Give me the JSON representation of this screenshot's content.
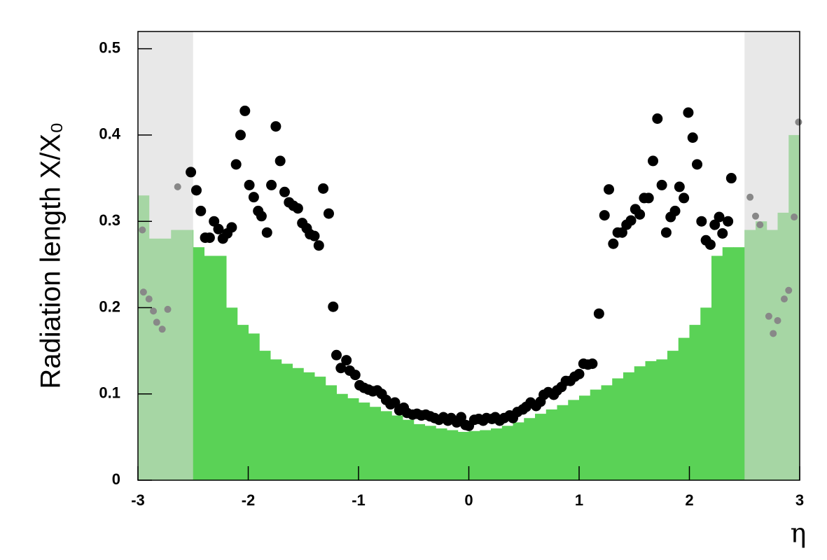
{
  "chart_data": {
    "type": "histogram",
    "xlabel": "η",
    "ylabel": "Radiation length X/X₀",
    "xlim": [
      -3,
      3
    ],
    "ylim": [
      0,
      0.52
    ],
    "xticks": [
      -3,
      -2,
      -1,
      0,
      1,
      2,
      3
    ],
    "yticks": [
      0,
      0.1,
      0.2,
      0.3,
      0.4,
      0.5
    ],
    "color": "#5ad256",
    "bins": [
      -3,
      -2.9,
      -2.8,
      -2.7,
      -2.6,
      -2.5,
      -2.4,
      -2.3,
      -2.2,
      -2.1,
      -2,
      -1.9,
      -1.8,
      -1.7,
      -1.6,
      -1.5,
      -1.4,
      -1.3,
      -1.2,
      -1.1,
      -1,
      -0.9,
      -0.8,
      -0.7,
      -0.6,
      -0.5,
      -0.4,
      -0.3,
      -0.2,
      -0.1,
      0,
      0.1,
      0.2,
      0.3,
      0.4,
      0.5,
      0.6,
      0.7,
      0.8,
      0.9,
      1,
      1.1,
      1.2,
      1.3,
      1.4,
      1.5,
      1.6,
      1.7,
      1.8,
      1.9,
      2,
      2.1,
      2.2,
      2.3,
      2.4,
      2.5,
      2.6,
      2.7,
      2.8,
      2.9,
      3
    ],
    "counts": [
      0.33,
      0.28,
      0.28,
      0.29,
      0.29,
      0.27,
      0.26,
      0.26,
      0.2,
      0.18,
      0.17,
      0.15,
      0.14,
      0.135,
      0.13,
      0.125,
      0.12,
      0.11,
      0.1,
      0.095,
      0.09,
      0.085,
      0.08,
      0.075,
      0.07,
      0.065,
      0.063,
      0.06,
      0.058,
      0.056,
      0.057,
      0.058,
      0.06,
      0.063,
      0.067,
      0.072,
      0.077,
      0.082,
      0.087,
      0.093,
      0.098,
      0.105,
      0.11,
      0.118,
      0.125,
      0.132,
      0.138,
      0.14,
      0.15,
      0.165,
      0.18,
      0.2,
      0.26,
      0.27,
      0.27,
      0.29,
      0.3,
      0.29,
      0.31,
      0.4
    ],
    "shaded_ranges": [
      [
        -3,
        -2.5
      ],
      [
        2.5,
        3
      ]
    ],
    "points": {
      "color": "#000000",
      "x": [
        -2.52,
        -2.47,
        -2.43,
        -2.39,
        -2.35,
        -2.31,
        -2.27,
        -2.23,
        -2.19,
        -2.15,
        -2.11,
        -2.07,
        -2.03,
        -1.99,
        -1.95,
        -1.91,
        -1.88,
        -1.83,
        -1.79,
        -1.75,
        -1.71,
        -1.67,
        -1.63,
        -1.59,
        -1.55,
        -1.51,
        -1.47,
        -1.44,
        -1.4,
        -1.36,
        -1.32,
        -1.27,
        -1.23,
        -1.2,
        -1.16,
        -1.11,
        -1.08,
        -1.03,
        -0.99,
        -0.95,
        -0.91,
        -0.87,
        -0.83,
        -0.79,
        -0.75,
        -0.71,
        -0.67,
        -0.63,
        -0.59,
        -0.56,
        -0.51,
        -0.47,
        -0.43,
        -0.39,
        -0.35,
        -0.31,
        -0.27,
        -0.23,
        -0.19,
        -0.16,
        -0.11,
        -0.07,
        -0.03,
        0,
        0.05,
        0.09,
        0.13,
        0.16,
        0.21,
        0.24,
        0.28,
        0.32,
        0.37,
        0.4,
        0.44,
        0.49,
        0.52,
        0.56,
        0.61,
        0.65,
        0.68,
        0.72,
        0.77,
        0.8,
        0.84,
        0.88,
        0.92,
        0.96,
        1,
        1.04,
        1.08,
        1.12,
        1.18,
        1.23,
        1.27,
        1.31,
        1.35,
        1.39,
        1.43,
        1.47,
        1.51,
        1.55,
        1.59,
        1.63,
        1.67,
        1.71,
        1.75,
        1.79,
        1.83,
        1.87,
        1.91,
        1.95,
        1.99,
        2.03,
        2.07,
        2.11,
        2.15,
        2.19,
        2.23,
        2.27,
        2.3,
        2.35,
        2.38
      ],
      "y": [
        0.357,
        0.336,
        0.312,
        0.281,
        0.281,
        0.3,
        0.291,
        0.28,
        0.286,
        0.293,
        0.366,
        0.4,
        0.428,
        0.342,
        0.328,
        0.312,
        0.306,
        0.287,
        0.342,
        0.41,
        0.37,
        0.334,
        0.322,
        0.318,
        0.315,
        0.298,
        0.292,
        0.285,
        0.283,
        0.272,
        0.338,
        0.309,
        0.201,
        0.145,
        0.13,
        0.139,
        0.127,
        0.122,
        0.11,
        0.107,
        0.105,
        0.103,
        0.104,
        0.1,
        0.093,
        0.088,
        0.09,
        0.081,
        0.084,
        0.078,
        0.076,
        0.077,
        0.075,
        0.076,
        0.074,
        0.072,
        0.07,
        0.073,
        0.069,
        0.072,
        0.067,
        0.073,
        0.064,
        0.063,
        0.07,
        0.071,
        0.069,
        0.072,
        0.071,
        0.073,
        0.069,
        0.072,
        0.075,
        0.072,
        0.079,
        0.082,
        0.085,
        0.09,
        0.086,
        0.091,
        0.099,
        0.102,
        0.099,
        0.104,
        0.108,
        0.115,
        0.115,
        0.12,
        0.123,
        0.135,
        0.134,
        0.135,
        0.193,
        0.307,
        0.337,
        0.274,
        0.287,
        0.287,
        0.296,
        0.301,
        0.314,
        0.308,
        0.327,
        0.327,
        0.37,
        0.419,
        0.342,
        0.287,
        0.305,
        0.312,
        0.34,
        0.327,
        0.426,
        0.397,
        0.366,
        0.3,
        0.278,
        0.273,
        0.296,
        0.305,
        0.286,
        0.3,
        0.35
      ]
    },
    "masked_points": {
      "color": "#888888",
      "x": [
        -2.96,
        -2.95,
        -2.9,
        -2.86,
        -2.83,
        -2.78,
        -2.73,
        -2.64,
        2.55,
        2.6,
        2.64,
        2.72,
        2.76,
        2.8,
        2.86,
        2.9,
        2.95,
        2.99
      ],
      "y": [
        0.29,
        0.218,
        0.21,
        0.196,
        0.183,
        0.175,
        0.198,
        0.34,
        0.328,
        0.306,
        0.296,
        0.19,
        0.17,
        0.185,
        0.21,
        0.22,
        0.305,
        0.415
      ]
    }
  }
}
